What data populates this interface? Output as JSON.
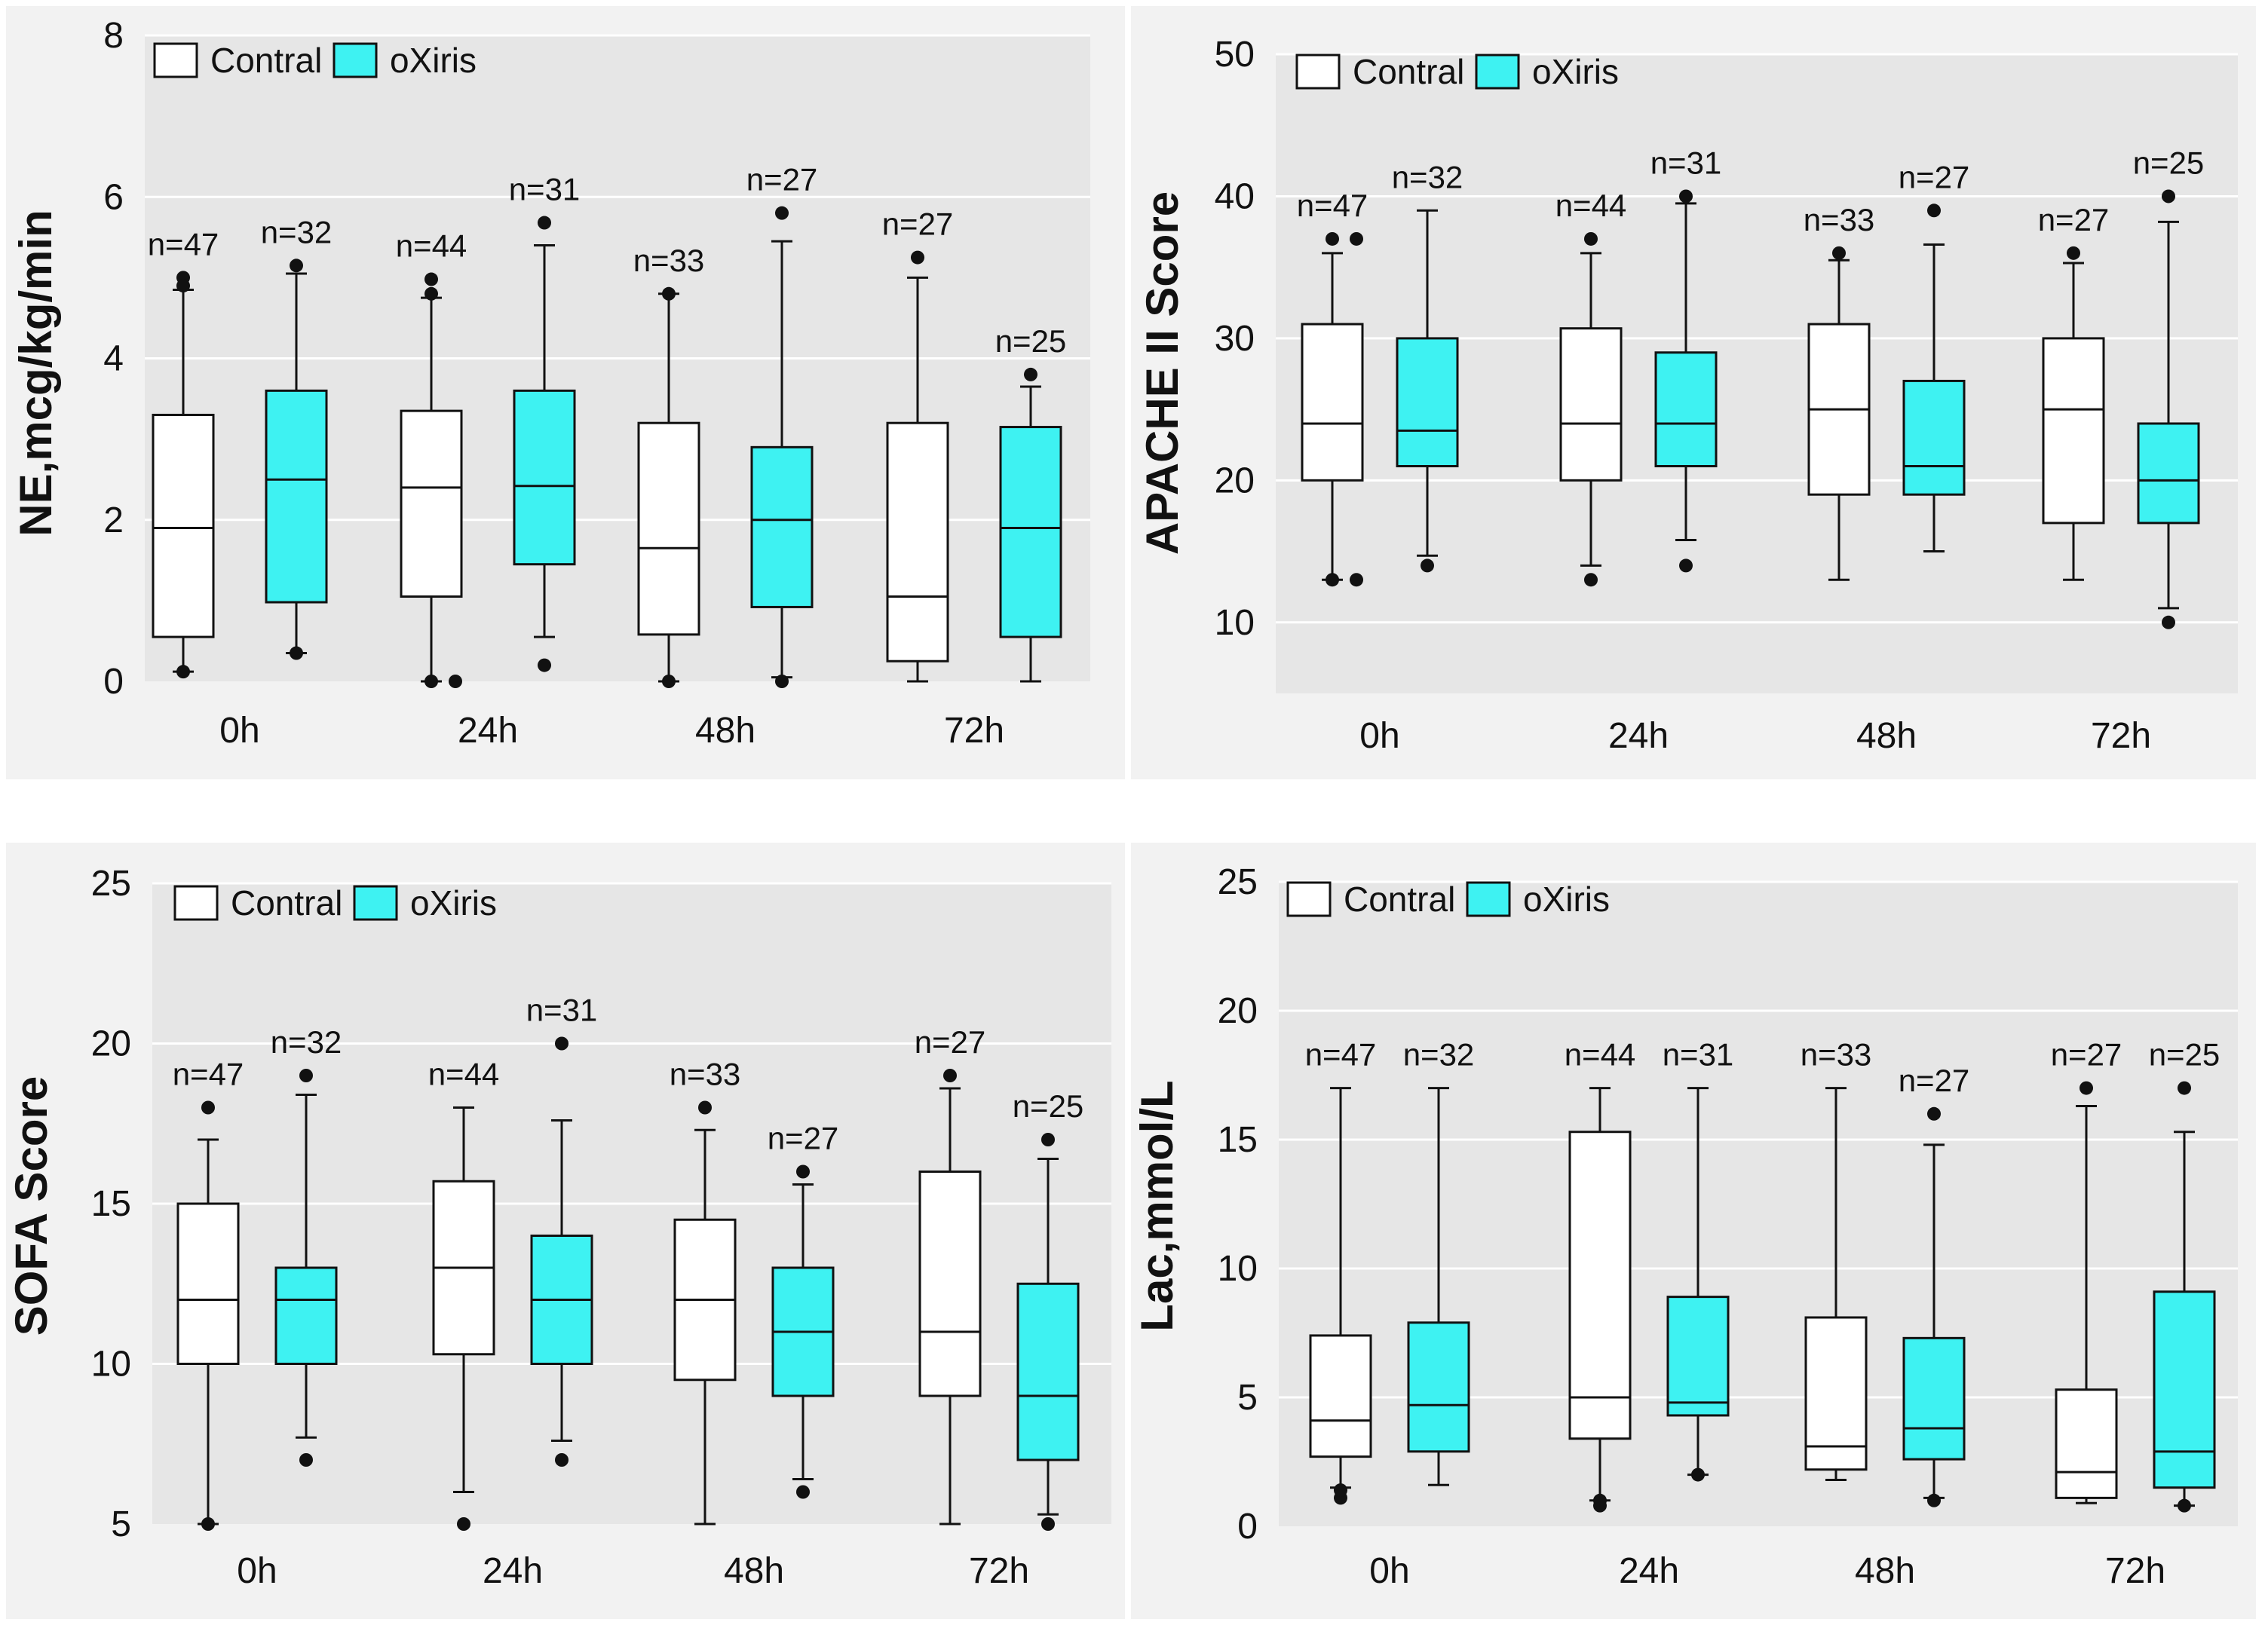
{
  "colors": {
    "contral": "#ffffff",
    "oxiris": "#3ef2f2",
    "panel": "#f2f2f2",
    "plot": "#e6e6e6"
  },
  "chart_data": [
    {
      "type": "box",
      "ylabel": "NE,mcg/kg/min",
      "ylim": [
        0,
        8
      ],
      "yticks": [
        0,
        2,
        4,
        6,
        8
      ],
      "categories": [
        "0h",
        "24h",
        "48h",
        "72h"
      ],
      "legend": {
        "labels": [
          "Contral",
          "oXiris"
        ],
        "position": "top-left"
      },
      "series": [
        {
          "name": "Contral",
          "boxes": [
            {
              "n": "n=47",
              "whislo": 0.12,
              "q1": 0.55,
              "med": 1.9,
              "q3": 3.3,
              "whishi": 4.85,
              "fliers": [
                0.12,
                5.0,
                4.9
              ]
            },
            {
              "n": "n=44",
              "whislo": 0.0,
              "q1": 1.05,
              "med": 2.4,
              "q3": 3.35,
              "whishi": 4.75,
              "fliers": [
                0.0,
                0.0,
                4.98,
                4.8
              ]
            },
            {
              "n": "n=33",
              "whislo": 0.0,
              "q1": 0.58,
              "med": 1.65,
              "q3": 3.2,
              "whishi": 4.8,
              "fliers": [
                0.0,
                4.8
              ]
            },
            {
              "n": "n=27",
              "whislo": 0.0,
              "q1": 0.25,
              "med": 1.05,
              "q3": 3.2,
              "whishi": 5.0,
              "fliers": [
                5.25
              ]
            }
          ]
        },
        {
          "name": "oXiris",
          "boxes": [
            {
              "n": "n=32",
              "whislo": 0.35,
              "q1": 0.98,
              "med": 2.5,
              "q3": 3.6,
              "whishi": 5.05,
              "fliers": [
                0.35,
                5.15
              ]
            },
            {
              "n": "n=31",
              "whislo": 0.55,
              "q1": 1.45,
              "med": 2.42,
              "q3": 3.6,
              "whishi": 5.4,
              "fliers": [
                0.2,
                5.68
              ]
            },
            {
              "n": "n=27",
              "whislo": 0.05,
              "q1": 0.92,
              "med": 2.0,
              "q3": 2.9,
              "whishi": 5.45,
              "fliers": [
                0.0,
                5.8
              ]
            },
            {
              "n": "n=25",
              "whislo": 0.0,
              "q1": 0.55,
              "med": 1.9,
              "q3": 3.15,
              "whishi": 3.65,
              "fliers": [
                3.8
              ]
            }
          ]
        }
      ]
    },
    {
      "type": "box",
      "ylabel": "APACHE II Score",
      "ylim": [
        5,
        50
      ],
      "yticks": [
        10,
        20,
        30,
        40,
        50
      ],
      "categories": [
        "0h",
        "24h",
        "48h",
        "72h"
      ],
      "legend": {
        "labels": [
          "Contral",
          "oXiris"
        ],
        "position": "top-left"
      },
      "series": [
        {
          "name": "Contral",
          "boxes": [
            {
              "n": "n=47",
              "whislo": 13,
              "q1": 20,
              "med": 24,
              "q3": 31,
              "whishi": 36,
              "fliers": [
                13,
                13,
                37,
                37
              ]
            },
            {
              "n": "n=44",
              "whislo": 14,
              "q1": 20,
              "med": 24,
              "q3": 30.7,
              "whishi": 36,
              "fliers": [
                13,
                37
              ]
            },
            {
              "n": "n=33",
              "whislo": 13,
              "q1": 19,
              "med": 25,
              "q3": 31,
              "whishi": 35.5,
              "fliers": [
                36
              ]
            },
            {
              "n": "n=27",
              "whislo": 13,
              "q1": 17,
              "med": 25,
              "q3": 30,
              "whishi": 35.3,
              "fliers": [
                36
              ]
            }
          ]
        },
        {
          "name": "oXiris",
          "boxes": [
            {
              "n": "n=32",
              "whislo": 14.7,
              "q1": 21,
              "med": 23.5,
              "q3": 30,
              "whishi": 39,
              "fliers": [
                14
              ]
            },
            {
              "n": "n=31",
              "whislo": 15.8,
              "q1": 21,
              "med": 24,
              "q3": 29,
              "whishi": 39.5,
              "fliers": [
                14,
                40
              ]
            },
            {
              "n": "n=27",
              "whislo": 15,
              "q1": 19,
              "med": 21,
              "q3": 27,
              "whishi": 36.6,
              "fliers": [
                39
              ]
            },
            {
              "n": "n=25",
              "whislo": 11,
              "q1": 17,
              "med": 20,
              "q3": 24,
              "whishi": 38.2,
              "fliers": [
                10,
                40
              ]
            }
          ]
        }
      ]
    },
    {
      "type": "box",
      "ylabel": "SOFA Score",
      "ylim": [
        5,
        25
      ],
      "yticks": [
        5,
        10,
        15,
        20,
        25
      ],
      "categories": [
        "0h",
        "24h",
        "48h",
        "72h"
      ],
      "legend": {
        "labels": [
          "Contral",
          "oXiris"
        ],
        "position": "top-left"
      },
      "series": [
        {
          "name": "Contral",
          "boxes": [
            {
              "n": "n=47",
              "whislo": 5,
              "q1": 10,
              "med": 12,
              "q3": 15,
              "whishi": 17,
              "fliers": [
                5,
                18
              ]
            },
            {
              "n": "n=44",
              "whislo": 6,
              "q1": 10.3,
              "med": 13,
              "q3": 15.7,
              "whishi": 18,
              "fliers": [
                5
              ]
            },
            {
              "n": "n=33",
              "whislo": 5,
              "q1": 9.5,
              "med": 12,
              "q3": 14.5,
              "whishi": 17.3,
              "fliers": [
                18
              ]
            },
            {
              "n": "n=27",
              "whislo": 5,
              "q1": 9,
              "med": 11,
              "q3": 16,
              "whishi": 18.6,
              "fliers": [
                19
              ]
            }
          ]
        },
        {
          "name": "oXiris",
          "boxes": [
            {
              "n": "n=32",
              "whislo": 7.7,
              "q1": 10,
              "med": 12,
              "q3": 13,
              "whishi": 18.4,
              "fliers": [
                7,
                19
              ]
            },
            {
              "n": "n=31",
              "whislo": 7.6,
              "q1": 10,
              "med": 12,
              "q3": 14,
              "whishi": 17.6,
              "fliers": [
                7,
                20
              ]
            },
            {
              "n": "n=27",
              "whislo": 6.4,
              "q1": 9,
              "med": 11,
              "q3": 13,
              "whishi": 15.6,
              "fliers": [
                6,
                16
              ]
            },
            {
              "n": "n=25",
              "whislo": 5.3,
              "q1": 7,
              "med": 9,
              "q3": 12.5,
              "whishi": 16.4,
              "fliers": [
                5,
                17
              ]
            }
          ]
        }
      ]
    },
    {
      "type": "box",
      "ylabel": "Lac,mmol/L",
      "ylim": [
        0,
        25
      ],
      "yticks": [
        0,
        5,
        10,
        15,
        20,
        25
      ],
      "categories": [
        "0h",
        "24h",
        "48h",
        "72h"
      ],
      "legend": {
        "labels": [
          "Contral",
          "oXiris"
        ],
        "position": "top-left"
      },
      "series": [
        {
          "name": "Contral",
          "boxes": [
            {
              "n": "n=47",
              "whislo": 1.5,
              "q1": 2.7,
              "med": 4.1,
              "q3": 7.4,
              "whishi": 17,
              "fliers": [
                1.1,
                1.4
              ]
            },
            {
              "n": "n=44",
              "whislo": 1.0,
              "q1": 3.4,
              "med": 5.0,
              "q3": 15.3,
              "whishi": 17,
              "fliers": [
                0.8,
                1.0
              ]
            },
            {
              "n": "n=33",
              "whislo": 1.8,
              "q1": 2.2,
              "med": 3.1,
              "q3": 8.1,
              "whishi": 17,
              "fliers": []
            },
            {
              "n": "n=27",
              "whislo": 0.9,
              "q1": 1.1,
              "med": 2.1,
              "q3": 5.3,
              "whishi": 16.3,
              "fliers": [
                17
              ]
            }
          ]
        },
        {
          "name": "oXiris",
          "boxes": [
            {
              "n": "n=32",
              "whislo": 1.6,
              "q1": 2.9,
              "med": 4.7,
              "q3": 7.9,
              "whishi": 17,
              "fliers": []
            },
            {
              "n": "n=31",
              "whislo": 2.0,
              "q1": 4.3,
              "med": 4.8,
              "q3": 8.9,
              "whishi": 17,
              "fliers": [
                2.0
              ]
            },
            {
              "n": "n=27",
              "whislo": 1.1,
              "q1": 2.6,
              "med": 3.8,
              "q3": 7.3,
              "whishi": 14.8,
              "fliers": [
                1.0,
                16
              ]
            },
            {
              "n": "n=25",
              "whislo": 0.8,
              "q1": 1.5,
              "med": 2.9,
              "q3": 9.1,
              "whishi": 15.3,
              "fliers": [
                0.8,
                17
              ]
            }
          ]
        }
      ]
    }
  ]
}
